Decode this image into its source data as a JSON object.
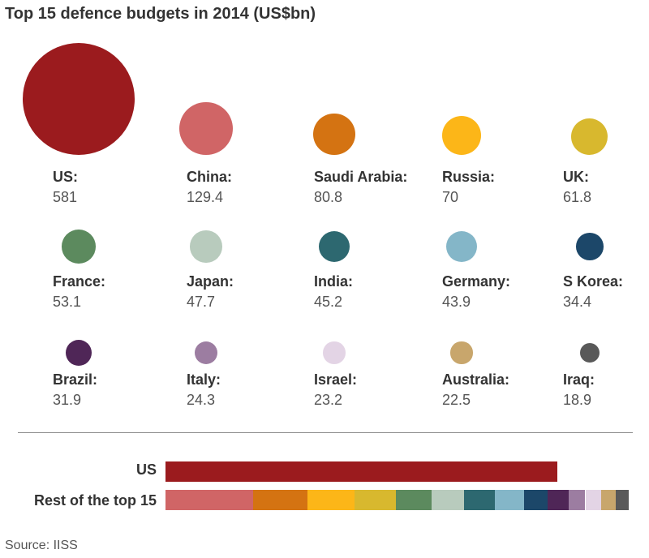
{
  "chart_data": {
    "type": "bubble",
    "title": "Top 15 defence budgets in 2014 (US$bn)",
    "unit": "US$bn",
    "countries": [
      {
        "name": "US:",
        "value_label": "581",
        "value": 581,
        "color": "#9b1b1e"
      },
      {
        "name": "China:",
        "value_label": "129.4",
        "value": 129.4,
        "color": "#d06566"
      },
      {
        "name": "Saudi Arabia:",
        "value_label": "80.8",
        "value": 80.8,
        "color": "#d47312"
      },
      {
        "name": "Russia:",
        "value_label": "70",
        "value": 70,
        "color": "#fcb618"
      },
      {
        "name": "UK:",
        "value_label": "61.8",
        "value": 61.8,
        "color": "#d8b82e"
      },
      {
        "name": "France:",
        "value_label": "53.1",
        "value": 53.1,
        "color": "#5c8a5e"
      },
      {
        "name": "Japan:",
        "value_label": "47.7",
        "value": 47.7,
        "color": "#b8cbbd"
      },
      {
        "name": "India:",
        "value_label": "45.2",
        "value": 45.2,
        "color": "#2d6870"
      },
      {
        "name": "Germany:",
        "value_label": "43.9",
        "value": 43.9,
        "color": "#84b6c8"
      },
      {
        "name": "S Korea:",
        "value_label": "34.4",
        "value": 34.4,
        "color": "#1c4769"
      },
      {
        "name": "Brazil:",
        "value_label": "31.9",
        "value": 31.9,
        "color": "#4f2657"
      },
      {
        "name": "Italy:",
        "value_label": "24.3",
        "value": 24.3,
        "color": "#9c7da1"
      },
      {
        "name": "Israel:",
        "value_label": "23.2",
        "value": 23.2,
        "color": "#e3d4e5"
      },
      {
        "name": "Australia:",
        "value_label": "22.5",
        "value": 22.5,
        "color": "#c8a66c"
      },
      {
        "name": "Iraq:",
        "value_label": "18.9",
        "value": 18.9,
        "color": "#595959"
      }
    ],
    "comparison_bars": [
      {
        "label": "US",
        "series": "us"
      },
      {
        "label": "Rest of the top 15",
        "series": "rest"
      }
    ]
  },
  "source": "Source: IISS"
}
